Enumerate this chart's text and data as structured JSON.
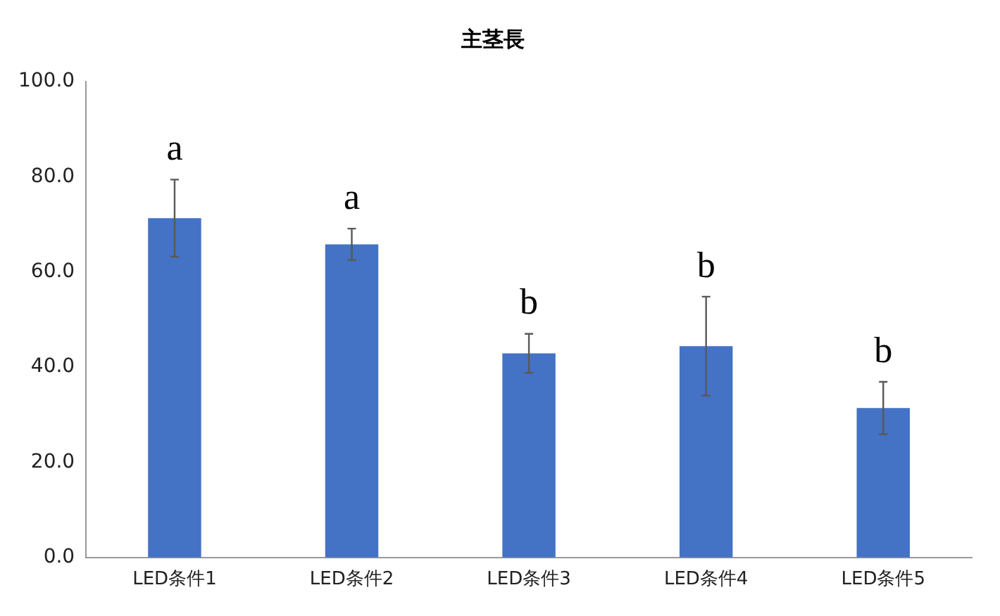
{
  "chart_data": {
    "type": "bar",
    "title": "主茎長",
    "categories": [
      "LED条件1",
      "LED条件2",
      "LED条件3",
      "LED条件4",
      "LED条件5"
    ],
    "values": [
      71.3,
      65.8,
      42.9,
      44.4,
      31.4
    ],
    "errors": [
      8.1,
      3.3,
      4.1,
      10.4,
      5.5
    ],
    "color": "#4472c4",
    "ylim": [
      0,
      100
    ],
    "yticks": [
      {
        "value": 0,
        "label": "0.0"
      },
      {
        "value": 20,
        "label": "20.0"
      },
      {
        "value": 40,
        "label": "40.0"
      },
      {
        "value": 60,
        "label": "60.0"
      },
      {
        "value": 80,
        "label": "80.0"
      },
      {
        "value": 100,
        "label": "100.0"
      }
    ],
    "annotations": [
      "a",
      "a",
      "b",
      "b",
      "b"
    ],
    "grid": false,
    "legend": false
  }
}
